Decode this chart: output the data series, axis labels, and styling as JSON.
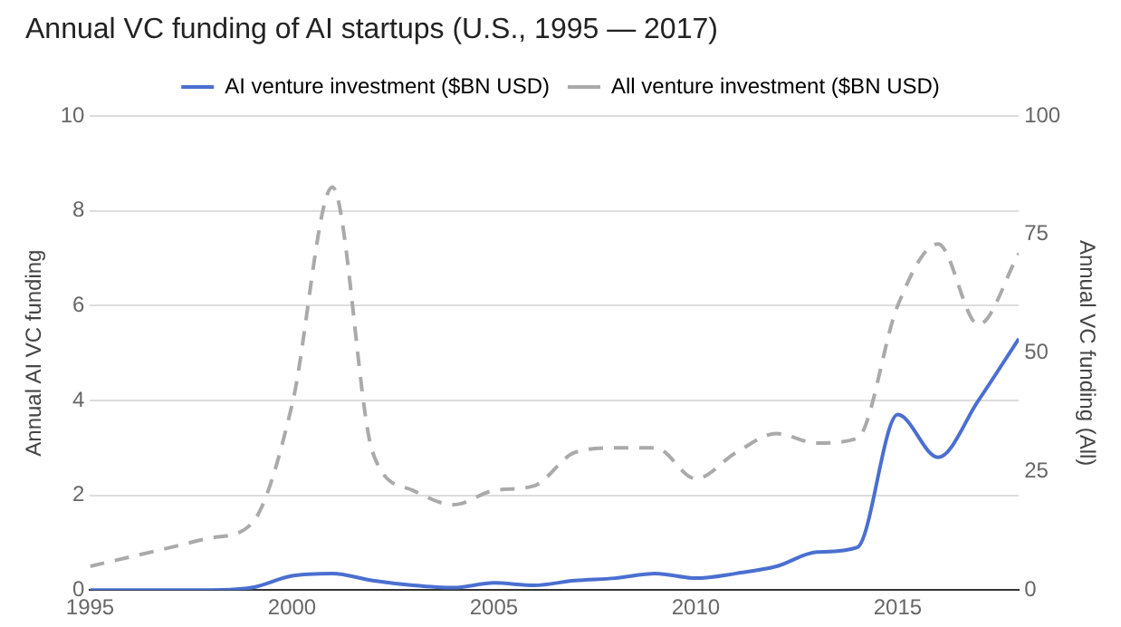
{
  "chart_data": {
    "type": "line",
    "title": "Annual VC funding of AI startups (U.S., 1995 — 2017)",
    "ylabel": "Annual AI VC funding",
    "y2label": "Annual VC funding (All)",
    "x": [
      1995,
      1996,
      1997,
      1998,
      1999,
      2000,
      2001,
      2002,
      2003,
      2004,
      2005,
      2006,
      2007,
      2008,
      2009,
      2010,
      2011,
      2012,
      2013,
      2014,
      2015,
      2016,
      2017,
      2018
    ],
    "series": [
      {
        "name": "AI venture investment ($BN USD)",
        "color": "#4a6fd0",
        "line_style": "solid",
        "values": [
          0,
          0,
          0,
          0,
          0.05,
          0.3,
          0.35,
          0.2,
          0.1,
          0.05,
          0.15,
          0.1,
          0.2,
          0.25,
          0.35,
          0.25,
          0.35,
          0.5,
          0.8,
          0.9,
          3.7,
          2.8,
          4.0,
          5.3
        ]
      },
      {
        "name": "All venture investment ($BN USD)",
        "color": "#aaaaaa",
        "line_style": "dashed",
        "axis": "y2",
        "values": [
          5,
          7,
          9,
          11,
          14,
          39,
          85,
          29,
          21,
          18,
          21,
          22,
          29,
          30,
          30,
          23.5,
          29,
          33,
          31,
          32,
          60,
          73,
          56,
          71
        ]
      }
    ],
    "xlim": [
      1995,
      2018
    ],
    "xticks": [
      1995,
      2000,
      2005,
      2010,
      2015
    ],
    "ylim": [
      0,
      10
    ],
    "yticks": [
      0,
      2,
      4,
      6,
      8,
      10
    ],
    "y2lim": [
      0,
      100
    ],
    "y2ticks": [
      0,
      25,
      50,
      75,
      100
    ],
    "grid": "y",
    "legend": "top",
    "marker": "none"
  }
}
